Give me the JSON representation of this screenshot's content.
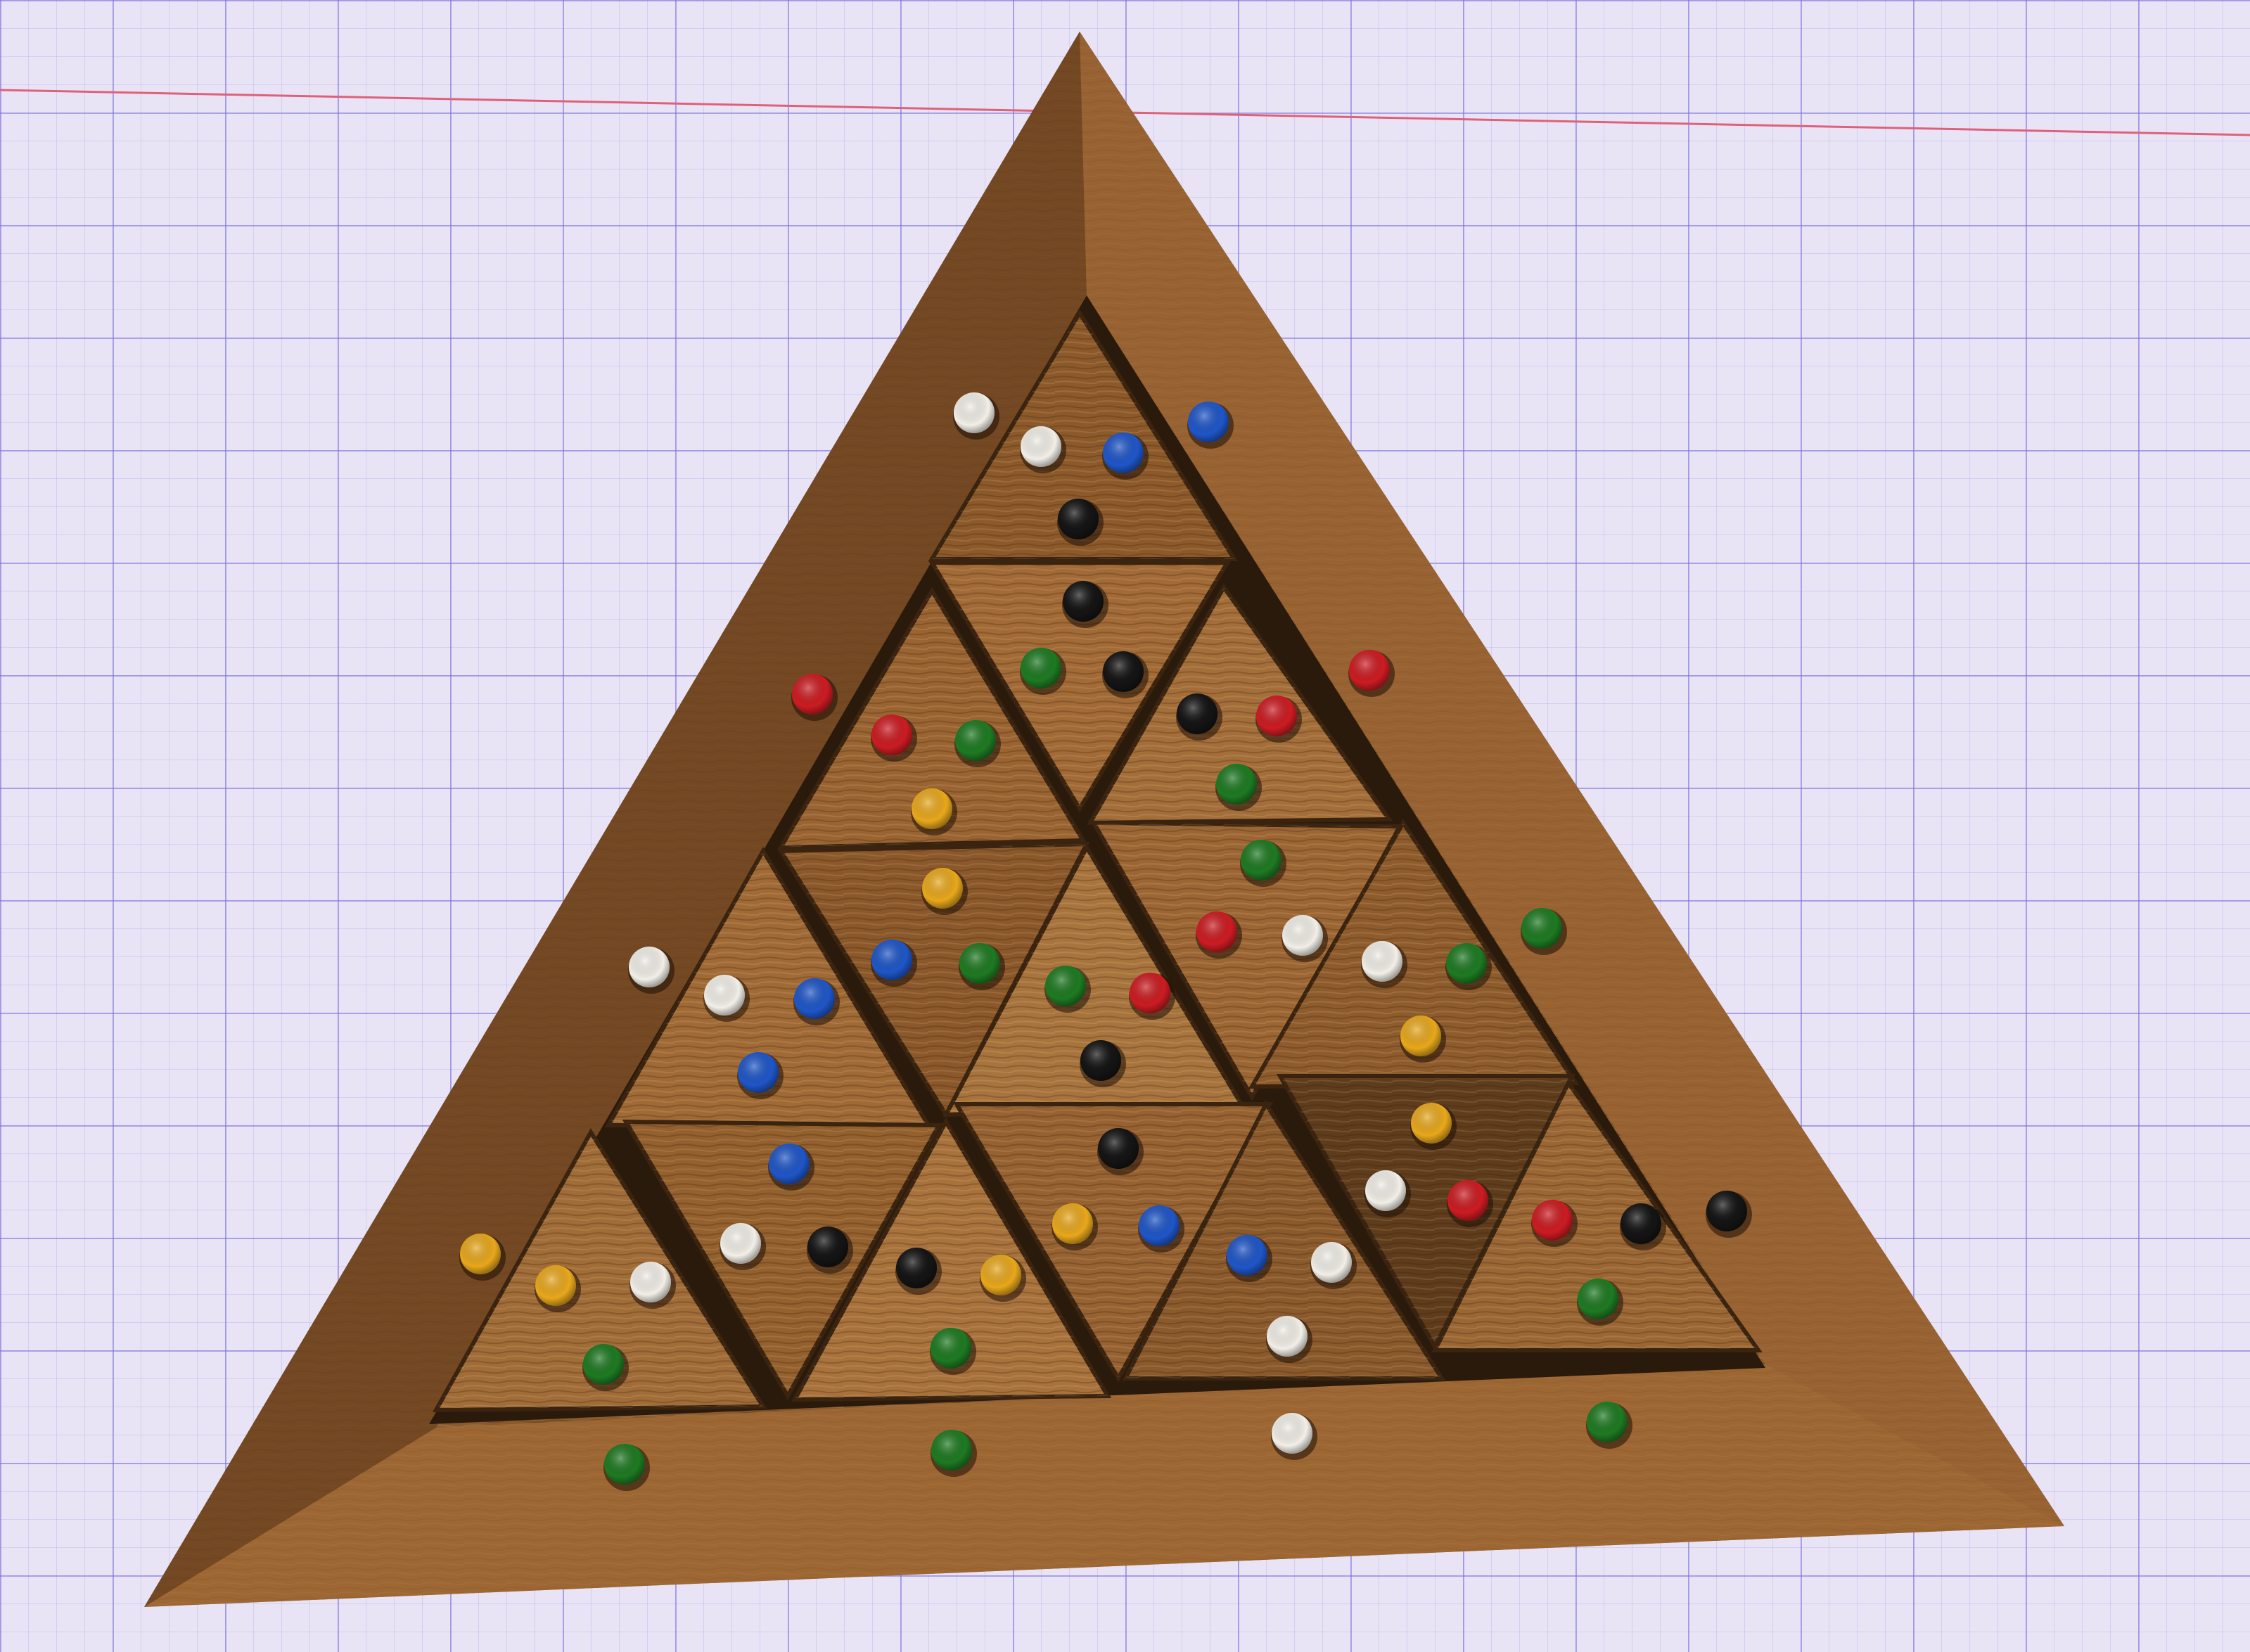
{
  "scene": {
    "description_free": true,
    "colors": {
      "paper": "#e8e4f6",
      "grid": "#7a6edc",
      "margin_line": "#e0607a",
      "wood_dark": "#6a4220",
      "wood_mid": "#8e5c2c",
      "wood_light": "#b07a44",
      "slot_shadow": "#2a1a0c"
    },
    "peg_colors": {
      "white": "#f2efe8",
      "blue": "#1f56c8",
      "black": "#141414",
      "red": "#cc1c22",
      "green": "#1e7a22",
      "yellow": "#e8a81c"
    },
    "frame_pegs": {
      "left_side": [
        "red",
        "white",
        "yellow"
      ],
      "right_side": [
        "blue",
        "red",
        "green",
        "black"
      ],
      "top_left_side": [
        "white"
      ],
      "bottom_side": [
        "green",
        "green",
        "white",
        "green"
      ]
    },
    "tile_count": 16
  }
}
